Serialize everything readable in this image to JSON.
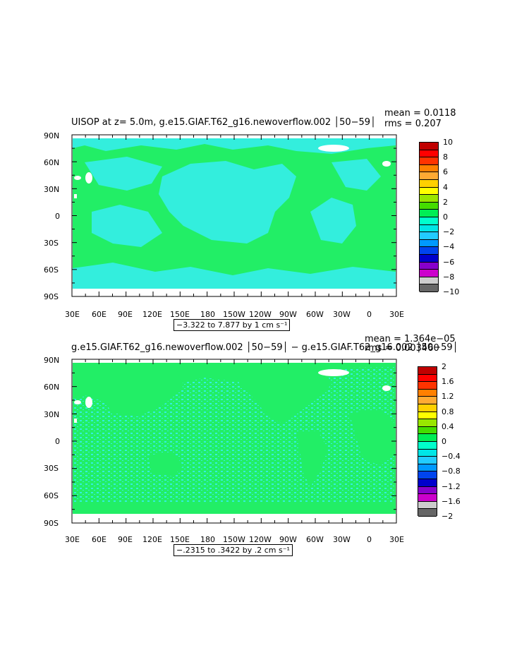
{
  "chart_data": [
    {
      "type": "heatmap",
      "title": "UISOP at z=    5.0m, g.e15.GIAF.T62_g16.newoverflow.002 │50−59│",
      "stats": [
        "mean = 0.0118",
        "rms = 0.207"
      ],
      "x_ticks": [
        "30E",
        "60E",
        "90E",
        "120E",
        "150E",
        "180",
        "150W",
        "120W",
        "90W",
        "60W",
        "30W",
        "0",
        "30E"
      ],
      "y_ticks": [
        "90N",
        "60N",
        "30N",
        "0",
        "30S",
        "60S",
        "90S"
      ],
      "colorbar_levels": [
        "10",
        "8",
        "6",
        "4",
        "2",
        "0",
        "−2",
        "−4",
        "−6",
        "−8",
        "−10"
      ],
      "colorbar_colors": [
        "#c00000",
        "#ff0000",
        "#ff3300",
        "#ff8000",
        "#ffaa33",
        "#ffd000",
        "#ffff00",
        "#99e600",
        "#44dd00",
        "#00ee55",
        "#00ffcc",
        "#00e6e6",
        "#22ccff",
        "#0099ff",
        "#0044ee",
        "#0000cc",
        "#8800cc",
        "#cc00cc",
        "#cccccc",
        "#666666"
      ],
      "caption": "−3.322 to 7.877 by 1 cm s⁻¹"
    },
    {
      "type": "heatmap",
      "title": "g.e15.GIAF.T62_g16.newoverflow.002 │50−59│ − g.e15.GIAF.T62_g16.002 │50−59│",
      "stats": [
        "mean = 1.364e−05",
        "rms = 0.003460"
      ],
      "x_ticks": [
        "30E",
        "60E",
        "90E",
        "120E",
        "150E",
        "180",
        "150W",
        "120W",
        "90W",
        "60W",
        "30W",
        "0",
        "30E"
      ],
      "y_ticks": [
        "90N",
        "60N",
        "30N",
        "0",
        "30S",
        "60S",
        "90S"
      ],
      "colorbar_levels": [
        "2",
        "1.6",
        "1.2",
        "0.8",
        "0.4",
        "0",
        "−0.4",
        "−0.8",
        "−1.2",
        "−1.6",
        "−2"
      ],
      "colorbar_colors": [
        "#c00000",
        "#ff0000",
        "#ff3300",
        "#ff8000",
        "#ffaa33",
        "#ffd000",
        "#ffff00",
        "#99e600",
        "#44dd00",
        "#00ee55",
        "#00ffcc",
        "#00e6e6",
        "#22ccff",
        "#0099ff",
        "#0044ee",
        "#0000cc",
        "#8800cc",
        "#cc00cc",
        "#cccccc",
        "#666666"
      ],
      "caption": "−.2315 to .3422 by .2 cm s⁻¹"
    }
  ]
}
